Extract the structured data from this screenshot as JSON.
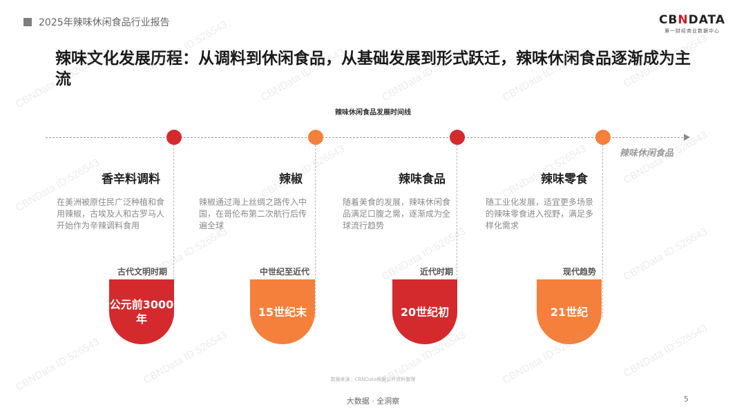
{
  "header": {
    "report_title": "2025年辣味休闲食品行业报告"
  },
  "logo": {
    "main_pre": "CB",
    "main_x": "N",
    "main_post": "DATA",
    "sub": "第一财经商业数据中心"
  },
  "slide": {
    "title": "辣味文化发展历程：从调料到休闲食品，从基础发展到形式跃迁，辣味休闲食品逐渐成为主流"
  },
  "timeline": {
    "title": "辣味休闲食品发展时间线",
    "end_label": "辣味休闲食品",
    "events": [
      {
        "name": "香辛料调料",
        "desc": "在美洲被原住民广泛种植和食用辣椒，古埃及人和古罗马人开始作为辛辣调料食用",
        "era": "古代文明时期",
        "badge": "公元前3000年",
        "color": "red"
      },
      {
        "name": "辣椒",
        "desc": "辣椒通过海上丝绸之路传入中国，在哥伦布第二次航行后传遍全球",
        "era": "中世纪至近代",
        "badge": "15世纪末",
        "color": "orange"
      },
      {
        "name": "辣味食品",
        "desc": "随着美食的发展，辣味休闲食品满足口腹之需，逐渐成为全球流行趋势",
        "era": "近代时期",
        "badge": "20世纪初",
        "color": "red"
      },
      {
        "name": "辣味零食",
        "desc": "随工业化发展，适宜更多场景的辣味零食进入视野，满足多样化需求",
        "era": "现代趋势",
        "badge": "21世纪",
        "color": "orange"
      }
    ]
  },
  "footer": {
    "source": "数据来源：CBNData根据公开资料整理",
    "tagline": "大数据 · 全洞察",
    "page_number": "5"
  },
  "watermark": "CBNData ID:526543"
}
